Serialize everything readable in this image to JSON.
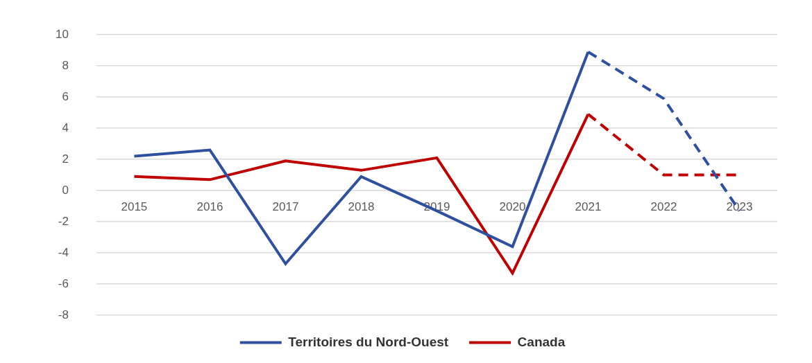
{
  "chart_data": {
    "type": "line",
    "categories": [
      "2015",
      "2016",
      "2017",
      "2018",
      "2019",
      "2020",
      "2021",
      "2022",
      "2023"
    ],
    "series": [
      {
        "name": "Territoires du Nord-Ouest",
        "color": "#2f4f9f",
        "line_style": "solid",
        "values": [
          2.2,
          2.6,
          -4.7,
          0.9,
          -1.3,
          -3.6,
          8.9,
          null,
          null
        ]
      },
      {
        "name": "Canada",
        "color": "#c00000",
        "line_style": "solid",
        "values": [
          0.9,
          0.7,
          1.9,
          1.3,
          2.1,
          -5.3,
          4.9,
          null,
          null
        ]
      },
      {
        "name": "Territoires du Nord-Ouest",
        "color": "#2f4f9f",
        "line_style": "dashed",
        "values": [
          null,
          null,
          null,
          null,
          null,
          null,
          8.9,
          5.9,
          -1.3
        ]
      },
      {
        "name": "Canada",
        "color": "#c00000",
        "line_style": "dashed",
        "values": [
          null,
          null,
          null,
          null,
          null,
          null,
          4.9,
          1.0,
          1.0
        ]
      }
    ],
    "ylim": [
      -8,
      10
    ],
    "yticks": [
      -8,
      -6,
      -4,
      -2,
      0,
      2,
      4,
      6,
      8,
      10
    ],
    "grid": true,
    "legend": "bottom"
  }
}
